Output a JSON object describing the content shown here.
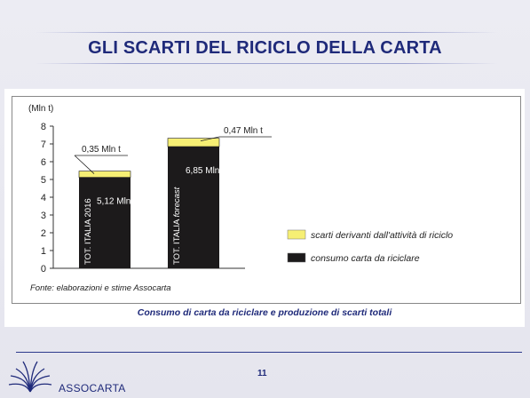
{
  "slide": {
    "title": "GLI SCARTI DEL RICICLO DELLA CARTA",
    "caption": "Consumo di carta da riciclare e produzione di scarti totali",
    "page_number": "11",
    "brand": "ASSOCARTA"
  },
  "chart_data": {
    "type": "bar",
    "stacked": true,
    "ylabel": "(Mln t)",
    "ylim": [
      0,
      8
    ],
    "yticks": [
      "0",
      "1",
      "2",
      "3",
      "4",
      "5",
      "6",
      "7",
      "8"
    ],
    "grid": false,
    "legend_position": "right",
    "categories": [
      "TOT. ITALIA 2016",
      "TOT. ITALIA forecast"
    ],
    "category_labels": [
      {
        "prefix": "TOT. ITALIA ",
        "emph": "2016"
      },
      {
        "prefix": "TOT. ITALIA ",
        "emph": "forecast"
      }
    ],
    "series": [
      {
        "name": "consumo carta da riciclare",
        "values": [
          5.12,
          6.85
        ],
        "color": "#1c1a1b"
      },
      {
        "name": "scarti derivanti dall'attività di riciclo",
        "values": [
          0.35,
          0.47
        ],
        "color": "#f6ef74"
      }
    ],
    "bar_value_labels": [
      "5,12 Mln t",
      "6,85 Mln t"
    ],
    "top_annotations": [
      "0,35 Mln t",
      "0,47 Mln t"
    ],
    "source": "Fonte: elaborazioni e stime Assocarta",
    "legend": [
      {
        "label": "scarti derivanti dall'attività di riciclo",
        "color": "#f6ef74"
      },
      {
        "label": "consumo carta da riciclare",
        "color": "#1c1a1b"
      }
    ]
  }
}
